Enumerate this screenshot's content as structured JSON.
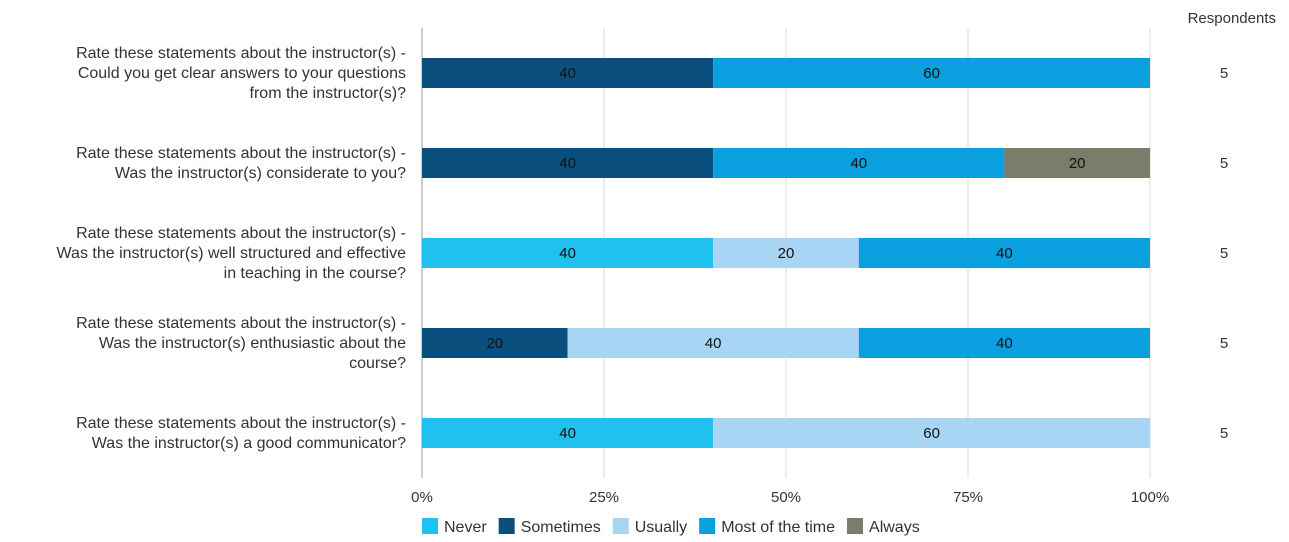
{
  "chart_data": {
    "type": "bar",
    "orientation": "horizontal",
    "stacked": true,
    "title": "",
    "xlabel": "",
    "ylabel": "",
    "xlim": [
      0,
      100
    ],
    "x_ticks": [
      "0%",
      "25%",
      "50%",
      "75%",
      "100%"
    ],
    "grid": true,
    "legend_position": "bottom",
    "respondents_header": "Respondents",
    "categories": [
      [
        "Rate these statements about the instructor(s) -",
        "Could you get clear answers to your questions",
        "from the instructor(s)?"
      ],
      [
        "Rate these statements about the instructor(s) -",
        "Was the instructor(s) considerate to you?"
      ],
      [
        "Rate these statements about the instructor(s) -",
        "Was the instructor(s) well structured and effective",
        "in teaching in the course?"
      ],
      [
        "Rate these statements about the instructor(s) -",
        "Was the instructor(s) enthusiastic about the",
        "course?"
      ],
      [
        "Rate these statements about the instructor(s) -",
        "Was the instructor(s) a good communicator?"
      ]
    ],
    "respondents": [
      "5",
      "5",
      "5",
      "5",
      "5"
    ],
    "series": [
      {
        "name": "Never",
        "color": "#1fc1ef",
        "values": [
          0,
          0,
          40,
          0,
          40
        ]
      },
      {
        "name": "Sometimes",
        "color": "#0b4f7f",
        "values": [
          40,
          40,
          0,
          20,
          0
        ]
      },
      {
        "name": "Usually",
        "color": "#a9d5f4",
        "values": [
          0,
          0,
          20,
          40,
          60
        ]
      },
      {
        "name": "Most of the time",
        "color": "#0aa0e0",
        "values": [
          60,
          40,
          40,
          40,
          0
        ]
      },
      {
        "name": "Always",
        "color": "#7c7c6a",
        "values": [
          0,
          20,
          0,
          0,
          0
        ]
      }
    ]
  }
}
